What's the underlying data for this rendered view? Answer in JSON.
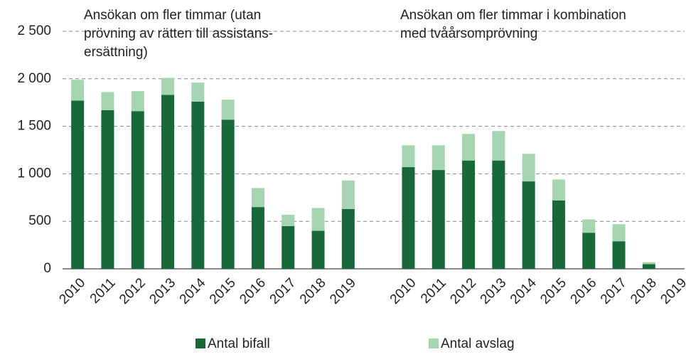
{
  "chart_data": {
    "type": "bar",
    "stacked": true,
    "ylim": [
      0,
      2500
    ],
    "yticks": [
      0,
      500,
      {
        "value": 1000,
        "label": "1 000"
      },
      {
        "value": 1500,
        "label": "1 500"
      },
      {
        "value": 2000,
        "label": "2 000"
      },
      {
        "value": 2500,
        "label": "2 500"
      }
    ],
    "grid": true,
    "legend": [
      {
        "name": "Antal bifall",
        "color": "#17693a"
      },
      {
        "name": "Antal avslag",
        "color": "#a6d5b1"
      }
    ],
    "panels": [
      {
        "title": [
          "Ansökan om fler timmar (utan",
          "prövning av rätten till assistans-",
          "ersättning)"
        ],
        "categories": [
          "2010",
          "2011",
          "2012",
          "2013",
          "2014",
          "2015",
          "2016",
          "2017",
          "2018",
          "2019"
        ],
        "series": [
          {
            "values": [
              1770,
              1670,
              1660,
              1830,
              1760,
              1570,
              650,
              450,
              400,
              630
            ]
          },
          {
            "values": [
              220,
              190,
              210,
              180,
              200,
              210,
              200,
              120,
              240,
              300
            ]
          }
        ]
      },
      {
        "title": [
          "Ansökan om fler timmar i kombination",
          "med tvåårsomprövning"
        ],
        "categories": [
          "2010",
          "2011",
          "2012",
          "2013",
          "2014",
          "2015",
          "2016",
          "2017",
          "2018",
          "2019"
        ],
        "series": [
          {
            "values": [
              1070,
              1040,
              1140,
              1140,
              920,
              720,
              380,
              290,
              50,
              0
            ]
          },
          {
            "values": [
              230,
              260,
              280,
              310,
              290,
              220,
              140,
              180,
              20,
              0
            ]
          }
        ]
      }
    ]
  }
}
